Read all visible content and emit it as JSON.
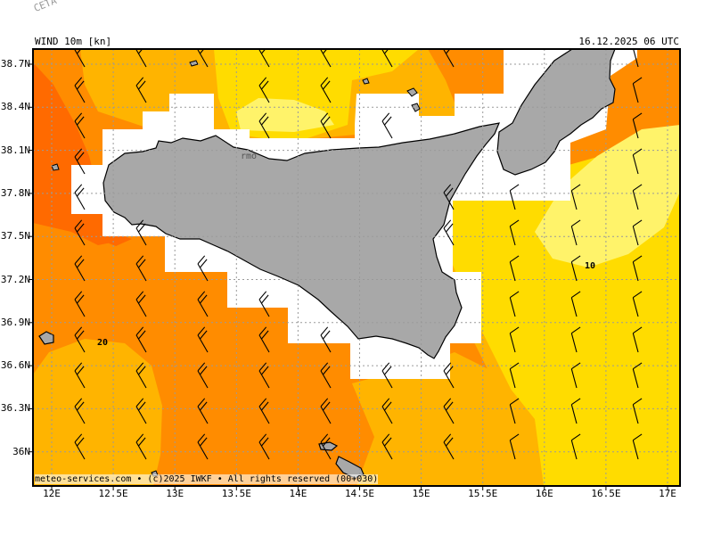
{
  "header": {
    "corner_label": "CETA - In",
    "title": "WIND 10m [kn]",
    "datetime": "16.12.2025 06 UTC"
  },
  "footer": {
    "credit": "meteo-services.com • (c)2025 IWKF • All rights reserved (00+030)"
  },
  "axes": {
    "lon_ticks": [
      "12E",
      "12.5E",
      "13E",
      "13.5E",
      "14E",
      "14.5E",
      "15E",
      "15.5E",
      "16E",
      "16.5E",
      "17E"
    ],
    "lat_ticks": [
      "38.7N",
      "38.4N",
      "38.1N",
      "37.8N",
      "37.5N",
      "37.2N",
      "36.9N",
      "36.6N",
      "36.3N",
      "36N"
    ]
  },
  "contour_labels": {
    "label_a": "20",
    "label_b": "10"
  },
  "place_label": "rmo",
  "colors": {
    "light_yellow": "#fff36a",
    "yellow": "#ffdc00",
    "light_orange": "#ffb400",
    "orange": "#ff8c00",
    "dark_orange": "#ff6a00",
    "land": "#a8a8a8",
    "no_data": "#ffffff"
  }
}
